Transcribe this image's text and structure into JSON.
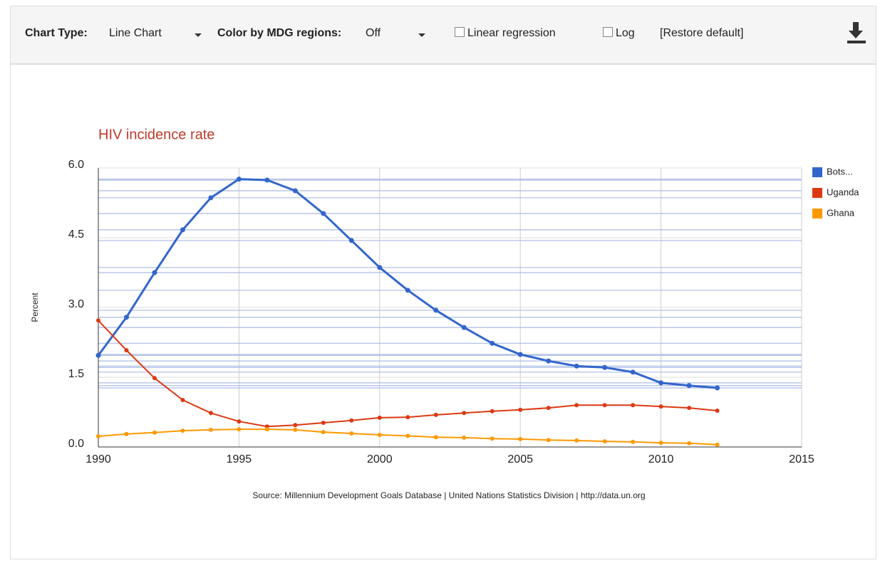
{
  "toolbar": {
    "chart_type_label": "Chart Type:",
    "chart_type": "Line Chart",
    "color_label": "Color by MDG regions:",
    "color_value": "Off",
    "linear_regression": "Linear regression",
    "log": "Log",
    "restore": "[Restore default]"
  },
  "chart_data": {
    "type": "line",
    "title": "HIV incidence rate",
    "y_label": "Percent",
    "source": "Source: Millennium Development Goals Database | United Nations Statistics Division | http://data.un.org",
    "x": [
      1990,
      1991,
      1992,
      1993,
      1994,
      1995,
      1996,
      1997,
      1998,
      1999,
      2000,
      2001,
      2002,
      2003,
      2004,
      2005,
      2006,
      2007,
      2008,
      2009,
      2010,
      2011,
      2012
    ],
    "series": [
      {
        "name": "Bots...",
        "color": "#3366cc",
        "values": [
          1.97,
          2.79,
          3.75,
          4.67,
          5.36,
          5.76,
          5.74,
          5.51,
          5.02,
          4.44,
          3.86,
          3.37,
          2.94,
          2.57,
          2.23,
          1.99,
          1.85,
          1.74,
          1.71,
          1.61,
          1.38,
          1.32,
          1.27
        ]
      },
      {
        "name": "Uganda",
        "color": "#dc3912",
        "values": [
          2.72,
          2.08,
          1.48,
          1.01,
          0.73,
          0.55,
          0.44,
          0.47,
          0.52,
          0.57,
          0.63,
          0.64,
          0.69,
          0.73,
          0.77,
          0.8,
          0.84,
          0.9,
          0.9,
          0.9,
          0.87,
          0.84,
          0.78
        ]
      },
      {
        "name": "Ghana",
        "color": "#ff9900",
        "values": [
          0.23,
          0.28,
          0.31,
          0.35,
          0.37,
          0.38,
          0.38,
          0.37,
          0.32,
          0.29,
          0.26,
          0.24,
          0.21,
          0.2,
          0.18,
          0.17,
          0.15,
          0.14,
          0.12,
          0.11,
          0.09,
          0.08,
          0.05
        ]
      }
    ],
    "xlim": [
      1990,
      2015
    ],
    "xticks": [
      1990,
      1995,
      2000,
      2005,
      2010,
      2015
    ],
    "ylim": [
      0,
      6
    ],
    "yticks": [
      {
        "value": 0,
        "label": "0.0"
      },
      1.5,
      {
        "value": 3,
        "label": "3.0"
      },
      4.5,
      {
        "value": 6,
        "label": "6.0"
      }
    ],
    "grid": true,
    "log_scale": false,
    "legend": "right"
  }
}
